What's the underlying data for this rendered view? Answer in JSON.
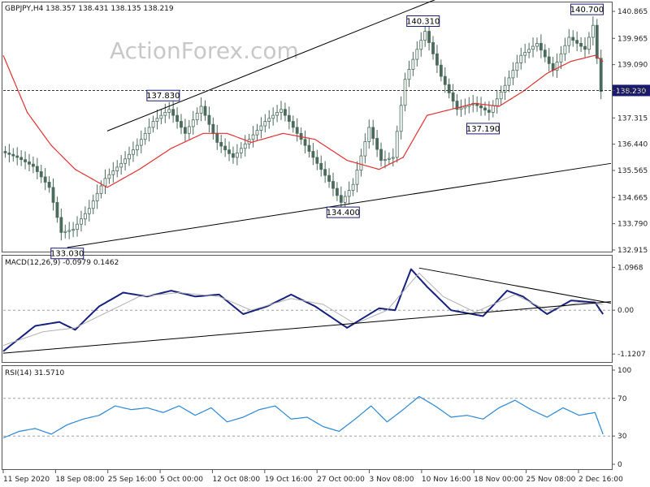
{
  "watermark": "ActionForex.com",
  "colors": {
    "candle": "#4b6b5d",
    "ma": "#e03030",
    "macd": "#16207e",
    "signal": "#b0b0b0",
    "rsi": "#2a86d6",
    "box_border": "#1a1a6e",
    "price_tag": "#1a1a6e",
    "trendline": "#000000",
    "ref_line": "#a0a0a0"
  },
  "chart_data": [
    {
      "type": "candlestick",
      "title": "GBPJPY,H4 138.357 138.431 138.135 138.219",
      "ylim": [
        132.915,
        140.865
      ],
      "y_ticks": [
        "140.865",
        "139.965",
        "139.090",
        "138.230",
        "137.315",
        "136.440",
        "135.565",
        "134.665",
        "133.790",
        "132.915"
      ],
      "current_price": "138.230",
      "x_ticks": [
        "11 Sep 2020",
        "18 Sep 08:00",
        "25 Sep 16:00",
        "5 Oct 00:00",
        "12 Oct 08:00",
        "19 Oct 16:00",
        "27 Oct 00:00",
        "3 Nov 08:00",
        "10 Nov 16:00",
        "18 Nov 00:00",
        "25 Nov 08:00",
        "2 Dec 16:00"
      ],
      "price_path": [
        {
          "bar": 0,
          "value": 136.2
        },
        {
          "bar": 4,
          "value": 136.0
        },
        {
          "bar": 8,
          "value": 135.7
        },
        {
          "bar": 12,
          "value": 135.0
        },
        {
          "bar": 15,
          "value": 133.5
        },
        {
          "bar": 18,
          "value": 133.6
        },
        {
          "bar": 22,
          "value": 134.3
        },
        {
          "bar": 26,
          "value": 135.3
        },
        {
          "bar": 30,
          "value": 135.8
        },
        {
          "bar": 34,
          "value": 136.4
        },
        {
          "bar": 38,
          "value": 137.2
        },
        {
          "bar": 42,
          "value": 137.6
        },
        {
          "bar": 46,
          "value": 136.8
        },
        {
          "bar": 50,
          "value": 137.7
        },
        {
          "bar": 54,
          "value": 136.5
        },
        {
          "bar": 58,
          "value": 136.0
        },
        {
          "bar": 62,
          "value": 136.6
        },
        {
          "bar": 66,
          "value": 137.2
        },
        {
          "bar": 70,
          "value": 137.6
        },
        {
          "bar": 74,
          "value": 136.8
        },
        {
          "bar": 78,
          "value": 136.0
        },
        {
          "bar": 82,
          "value": 135.2
        },
        {
          "bar": 85,
          "value": 134.5
        },
        {
          "bar": 88,
          "value": 135.1
        },
        {
          "bar": 92,
          "value": 137.0
        },
        {
          "bar": 95,
          "value": 135.9
        },
        {
          "bar": 98,
          "value": 136.0
        },
        {
          "bar": 101,
          "value": 138.6
        },
        {
          "bar": 104,
          "value": 139.6
        },
        {
          "bar": 106,
          "value": 140.2
        },
        {
          "bar": 110,
          "value": 138.7
        },
        {
          "bar": 114,
          "value": 137.6
        },
        {
          "bar": 118,
          "value": 137.8
        },
        {
          "bar": 122,
          "value": 137.5
        },
        {
          "bar": 126,
          "value": 138.4
        },
        {
          "bar": 130,
          "value": 139.4
        },
        {
          "bar": 134,
          "value": 139.8
        },
        {
          "bar": 138,
          "value": 138.9
        },
        {
          "bar": 142,
          "value": 140.0
        },
        {
          "bar": 146,
          "value": 139.6
        },
        {
          "bar": 148,
          "value": 140.4
        },
        {
          "bar": 150,
          "value": 138.2
        }
      ],
      "moving_average": [
        {
          "bar": 0,
          "value": 139.4
        },
        {
          "bar": 6,
          "value": 137.5
        },
        {
          "bar": 12,
          "value": 136.4
        },
        {
          "bar": 18,
          "value": 135.6
        },
        {
          "bar": 26,
          "value": 135.0
        },
        {
          "bar": 34,
          "value": 135.6
        },
        {
          "bar": 42,
          "value": 136.3
        },
        {
          "bar": 50,
          "value": 136.8
        },
        {
          "bar": 56,
          "value": 136.8
        },
        {
          "bar": 62,
          "value": 136.5
        },
        {
          "bar": 70,
          "value": 136.8
        },
        {
          "bar": 78,
          "value": 136.6
        },
        {
          "bar": 86,
          "value": 135.9
        },
        {
          "bar": 94,
          "value": 135.6
        },
        {
          "bar": 100,
          "value": 136.0
        },
        {
          "bar": 106,
          "value": 137.4
        },
        {
          "bar": 112,
          "value": 137.6
        },
        {
          "bar": 118,
          "value": 137.8
        },
        {
          "bar": 124,
          "value": 137.7
        },
        {
          "bar": 130,
          "value": 138.2
        },
        {
          "bar": 136,
          "value": 138.8
        },
        {
          "bar": 142,
          "value": 139.2
        },
        {
          "bar": 148,
          "value": 139.4
        },
        {
          "bar": 150,
          "value": 139.2
        }
      ],
      "annotations": [
        {
          "label": "133.030",
          "bar": 16,
          "value": 133.03,
          "position": "below"
        },
        {
          "label": "137.830",
          "bar": 40,
          "value": 137.83,
          "position": "above"
        },
        {
          "label": "134.400",
          "bar": 85,
          "value": 134.4,
          "position": "below"
        },
        {
          "label": "140.310",
          "bar": 105,
          "value": 140.31,
          "position": "above"
        },
        {
          "label": "137.190",
          "bar": 120,
          "value": 137.19,
          "position": "below"
        },
        {
          "label": "140.700",
          "bar": 146,
          "value": 140.7,
          "position": "above"
        }
      ],
      "trendlines": [
        {
          "from": {
            "bar": 26,
            "value": 136.88
          },
          "to": {
            "bar": 122,
            "value": 142.0
          }
        },
        {
          "from": {
            "bar": 16,
            "value": 133.0
          },
          "to": {
            "bar": 152,
            "value": 135.8
          }
        }
      ]
    },
    {
      "type": "line",
      "title": "MACD(12,26,9) -0.0979 0.1462",
      "ylim": [
        -1.2,
        1.25
      ],
      "y_ticks": [
        "1.0968",
        "0.00",
        "-1.1207"
      ],
      "series": [
        {
          "key": "macd",
          "values": [
            {
              "bar": 0,
              "value": -1.05
            },
            {
              "bar": 8,
              "value": -0.4
            },
            {
              "bar": 14,
              "value": -0.3
            },
            {
              "bar": 18,
              "value": -0.5
            },
            {
              "bar": 24,
              "value": 0.1
            },
            {
              "bar": 30,
              "value": 0.45
            },
            {
              "bar": 36,
              "value": 0.35
            },
            {
              "bar": 42,
              "value": 0.5
            },
            {
              "bar": 48,
              "value": 0.35
            },
            {
              "bar": 54,
              "value": 0.4
            },
            {
              "bar": 60,
              "value": -0.1
            },
            {
              "bar": 66,
              "value": 0.1
            },
            {
              "bar": 72,
              "value": 0.4
            },
            {
              "bar": 78,
              "value": 0.1
            },
            {
              "bar": 86,
              "value": -0.45
            },
            {
              "bar": 94,
              "value": 0.05
            },
            {
              "bar": 98,
              "value": 0.0
            },
            {
              "bar": 102,
              "value": 1.05
            },
            {
              "bar": 106,
              "value": 0.6
            },
            {
              "bar": 112,
              "value": 0.0
            },
            {
              "bar": 120,
              "value": -0.15
            },
            {
              "bar": 126,
              "value": 0.5
            },
            {
              "bar": 130,
              "value": 0.35
            },
            {
              "bar": 136,
              "value": -0.1
            },
            {
              "bar": 142,
              "value": 0.25
            },
            {
              "bar": 148,
              "value": 0.2
            },
            {
              "bar": 150,
              "value": -0.1
            }
          ]
        },
        {
          "key": "signal",
          "values": [
            {
              "bar": 0,
              "value": -0.9
            },
            {
              "bar": 10,
              "value": -0.55
            },
            {
              "bar": 18,
              "value": -0.45
            },
            {
              "bar": 26,
              "value": -0.05
            },
            {
              "bar": 34,
              "value": 0.35
            },
            {
              "bar": 44,
              "value": 0.45
            },
            {
              "bar": 54,
              "value": 0.35
            },
            {
              "bar": 62,
              "value": 0.0
            },
            {
              "bar": 72,
              "value": 0.3
            },
            {
              "bar": 80,
              "value": 0.15
            },
            {
              "bar": 88,
              "value": -0.35
            },
            {
              "bar": 96,
              "value": 0.0
            },
            {
              "bar": 104,
              "value": 0.95
            },
            {
              "bar": 110,
              "value": 0.35
            },
            {
              "bar": 118,
              "value": -0.05
            },
            {
              "bar": 128,
              "value": 0.4
            },
            {
              "bar": 136,
              "value": 0.0
            },
            {
              "bar": 144,
              "value": 0.2
            },
            {
              "bar": 150,
              "value": 0.15
            }
          ]
        }
      ],
      "trendlines": [
        {
          "from": {
            "bar": 0,
            "value": -1.1
          },
          "to": {
            "bar": 152,
            "value": 0.22
          }
        },
        {
          "from": {
            "bar": 104,
            "value": 1.08
          },
          "to": {
            "bar": 152,
            "value": 0.18
          }
        }
      ]
    },
    {
      "type": "line",
      "title": "RSI(14) 31.5710",
      "ylim": [
        0,
        100
      ],
      "y_ticks": [
        "100",
        "70",
        "30",
        "0"
      ],
      "reference_levels": [
        70,
        30
      ],
      "series": [
        {
          "key": "rsi",
          "values": [
            {
              "bar": 0,
              "value": 28
            },
            {
              "bar": 4,
              "value": 35
            },
            {
              "bar": 8,
              "value": 38
            },
            {
              "bar": 12,
              "value": 32
            },
            {
              "bar": 16,
              "value": 42
            },
            {
              "bar": 20,
              "value": 48
            },
            {
              "bar": 24,
              "value": 52
            },
            {
              "bar": 28,
              "value": 62
            },
            {
              "bar": 32,
              "value": 58
            },
            {
              "bar": 36,
              "value": 60
            },
            {
              "bar": 40,
              "value": 55
            },
            {
              "bar": 44,
              "value": 62
            },
            {
              "bar": 48,
              "value": 52
            },
            {
              "bar": 52,
              "value": 60
            },
            {
              "bar": 56,
              "value": 45
            },
            {
              "bar": 60,
              "value": 50
            },
            {
              "bar": 64,
              "value": 58
            },
            {
              "bar": 68,
              "value": 62
            },
            {
              "bar": 72,
              "value": 48
            },
            {
              "bar": 76,
              "value": 50
            },
            {
              "bar": 80,
              "value": 40
            },
            {
              "bar": 84,
              "value": 35
            },
            {
              "bar": 88,
              "value": 48
            },
            {
              "bar": 92,
              "value": 62
            },
            {
              "bar": 96,
              "value": 45
            },
            {
              "bar": 100,
              "value": 58
            },
            {
              "bar": 104,
              "value": 72
            },
            {
              "bar": 108,
              "value": 62
            },
            {
              "bar": 112,
              "value": 50
            },
            {
              "bar": 116,
              "value": 52
            },
            {
              "bar": 120,
              "value": 48
            },
            {
              "bar": 124,
              "value": 60
            },
            {
              "bar": 128,
              "value": 68
            },
            {
              "bar": 132,
              "value": 58
            },
            {
              "bar": 136,
              "value": 50
            },
            {
              "bar": 140,
              "value": 60
            },
            {
              "bar": 144,
              "value": 52
            },
            {
              "bar": 148,
              "value": 55
            },
            {
              "bar": 150,
              "value": 32
            }
          ]
        }
      ]
    }
  ]
}
